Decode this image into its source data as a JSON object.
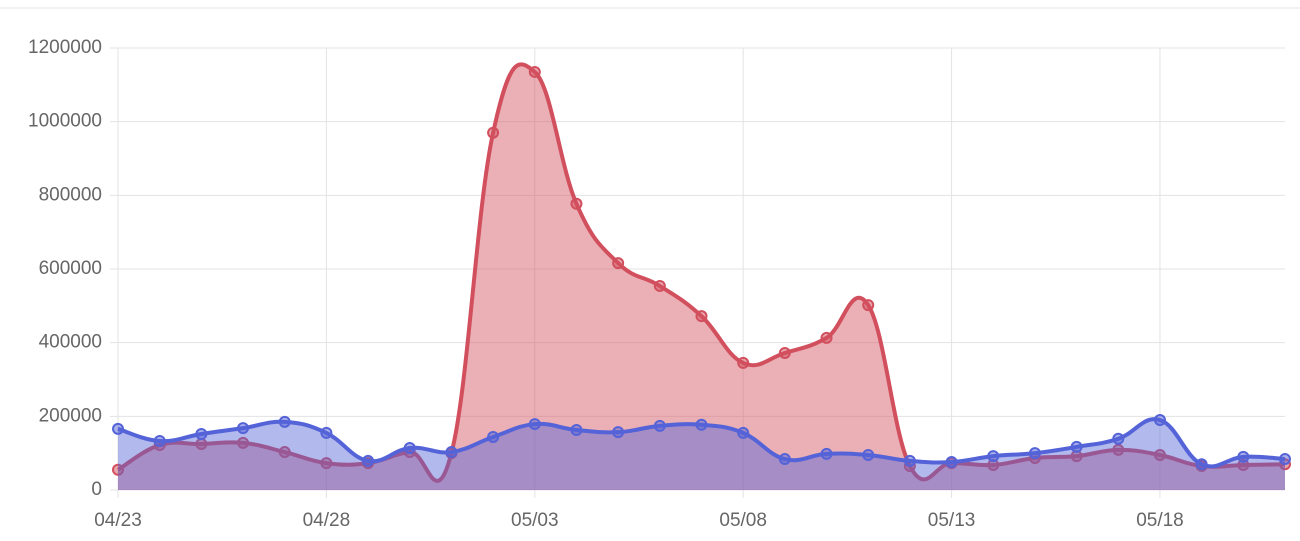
{
  "chart_data": {
    "type": "line",
    "area": true,
    "smooth": true,
    "grid": true,
    "x": [
      "04/23",
      null,
      null,
      null,
      null,
      "04/28",
      null,
      null,
      null,
      null,
      "05/03",
      null,
      null,
      null,
      null,
      "05/08",
      null,
      null,
      null,
      null,
      "05/13",
      null,
      null,
      null,
      null,
      "05/18",
      null,
      null,
      null
    ],
    "series": [
      {
        "color": "#d24f5e",
        "values": [
          55000,
          122000,
          125000,
          128000,
          103000,
          73000,
          73000,
          103000,
          100000,
          970000,
          1135000,
          777000,
          616000,
          554000,
          472000,
          345000,
          372000,
          413000,
          502000,
          65000,
          73000,
          68000,
          87000,
          92000,
          109000,
          95000,
          65000,
          68000,
          70000
        ]
      },
      {
        "color": "#5563d8",
        "values": [
          166000,
          133000,
          152000,
          168000,
          185000,
          155000,
          79000,
          114000,
          103000,
          144000,
          179000,
          163000,
          157000,
          174000,
          177000,
          155000,
          84000,
          98000,
          95000,
          79000,
          76000,
          92000,
          100000,
          117000,
          139000,
          190000,
          70000,
          90000,
          84000
        ]
      }
    ],
    "ylim": [
      0,
      1200000
    ],
    "yticks": [
      0,
      200000,
      400000,
      600000,
      800000,
      1000000,
      1200000
    ]
  }
}
